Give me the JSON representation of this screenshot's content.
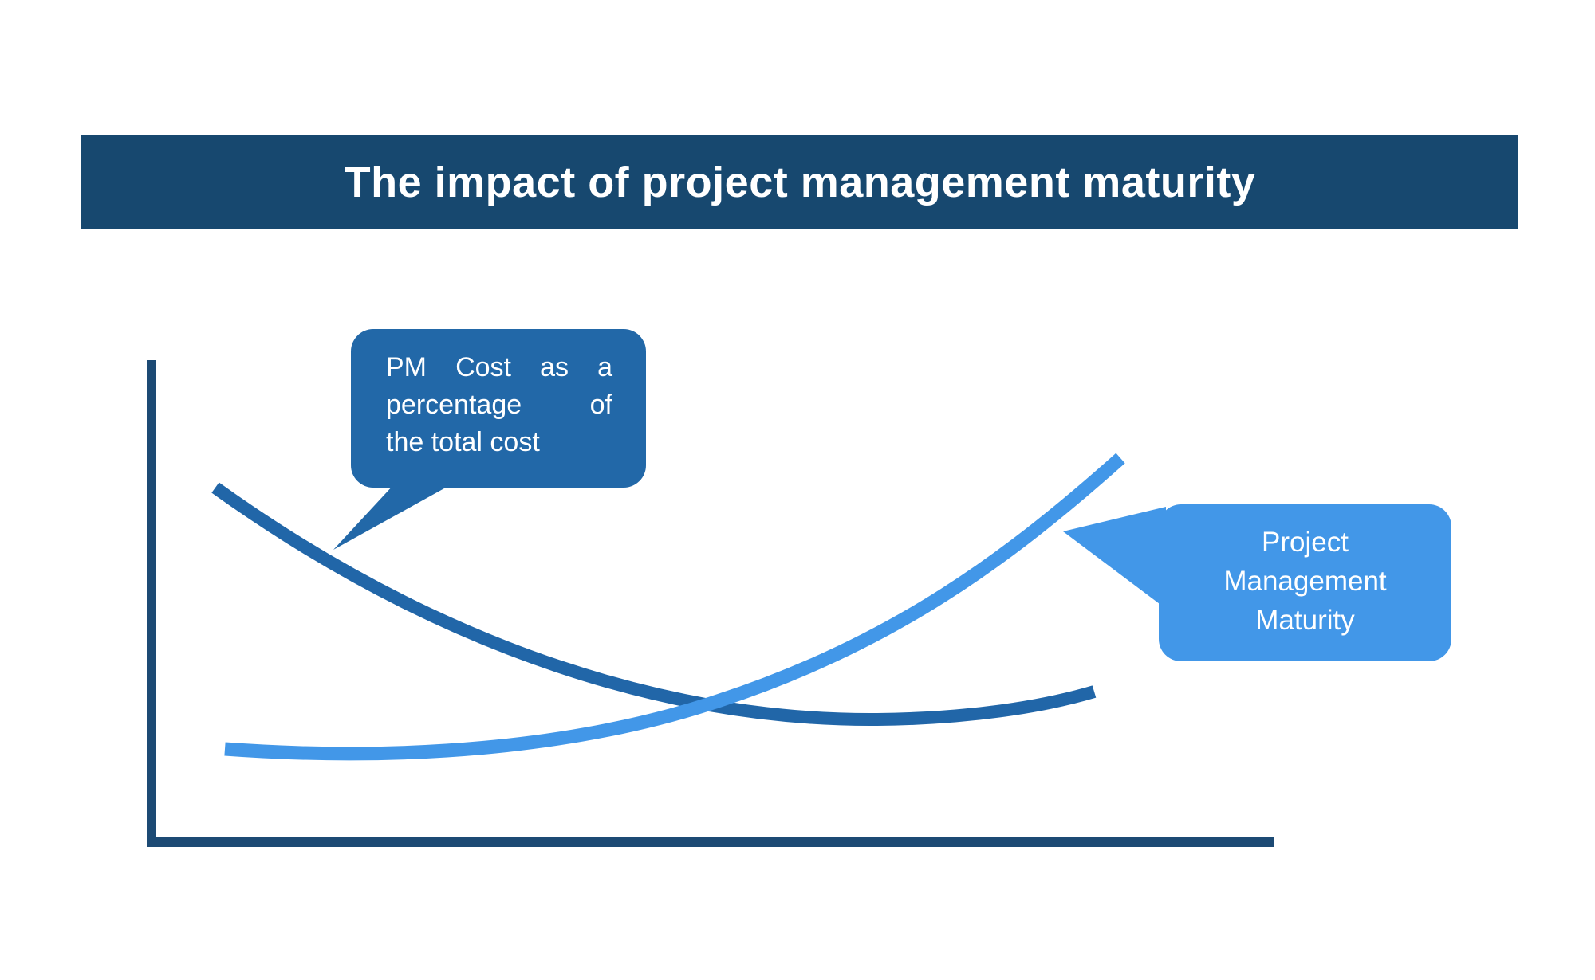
{
  "title": {
    "text": "The impact of project management maturity"
  },
  "callouts": {
    "pm_cost": {
      "lines": [
        "PM Cost as a",
        "percentage of",
        "the total cost"
      ]
    },
    "maturity": {
      "lines": [
        "Project",
        "Management",
        "Maturity"
      ]
    }
  },
  "colors": {
    "background": "#ffffff",
    "title_bar": "#17486f",
    "title_text": "#ffffff",
    "axis": "#1c4a74",
    "pm_cost_curve": "#2166a8",
    "maturity_curve": "#4297e8",
    "pm_cost_bubble": "#2268a8",
    "maturity_bubble": "#4297e8",
    "bubble_text": "#ffffff"
  },
  "chart_data": {
    "type": "line",
    "title": "The impact of project management maturity",
    "xlabel": "",
    "ylabel": "",
    "axes_labeled": false,
    "grid": false,
    "legend_position": "callout-bubbles",
    "units": "normalized 0-1 relative to axis lengths; chart shows no tick marks or numeric labels",
    "xlim": [
      0,
      1
    ],
    "ylim": [
      0,
      1
    ],
    "series": [
      {
        "name": "PM Cost as a percentage of the total cost",
        "color": "#2166a8",
        "shape": "decreasing convex curve that flattens and rises slightly at the end",
        "x": [
          0.06,
          0.22,
          0.36,
          0.47,
          0.57,
          0.68,
          0.84
        ],
        "y": [
          0.73,
          0.52,
          0.39,
          0.3,
          0.26,
          0.25,
          0.31
        ]
      },
      {
        "name": "Project Management Maturity",
        "color": "#4297e8",
        "shape": "nearly flat start then increasing convex curve",
        "x": [
          0.06,
          0.22,
          0.36,
          0.47,
          0.62,
          0.75,
          0.86
        ],
        "y": [
          0.19,
          0.18,
          0.23,
          0.29,
          0.41,
          0.6,
          0.79
        ]
      }
    ]
  }
}
